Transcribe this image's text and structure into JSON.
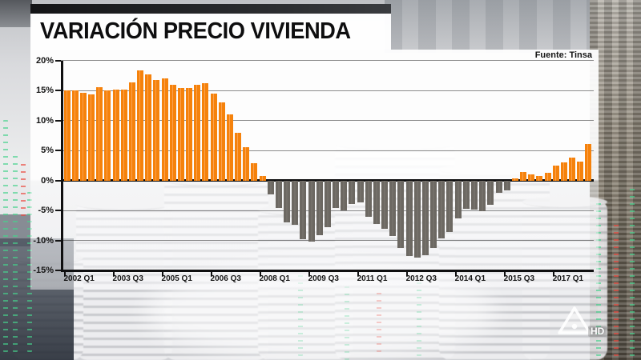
{
  "header": {
    "title": "VARIACIÓN PRECIO VIVIENDA"
  },
  "chart": {
    "source_label": "Fuente: Tinsa"
  },
  "watermark": {
    "hd_label": "HD"
  },
  "chart_data": {
    "type": "bar",
    "title": "VARIACIÓN PRECIO VIVIENDA",
    "source": "Fuente: Tinsa",
    "unit": "%",
    "ylim": [
      -15,
      20
    ],
    "grid": true,
    "y_tick_values": [
      20,
      15,
      10,
      5,
      0,
      -5,
      -10,
      -15
    ],
    "y_tick_labels": [
      "20%",
      "15%",
      "10%",
      "5%",
      "0%",
      "-5%",
      "-10%",
      "-15%"
    ],
    "x_tick_labels": [
      "2002 Q1",
      "2003 Q3",
      "2005 Q1",
      "2006 Q3",
      "2008 Q1",
      "2009 Q3",
      "2011 Q1",
      "2012 Q3",
      "2014 Q1",
      "2015 Q3",
      "2017 Q1"
    ],
    "x_tick_every": 6,
    "quarters": [
      "2002 Q1",
      "2002 Q2",
      "2002 Q3",
      "2002 Q4",
      "2003 Q1",
      "2003 Q2",
      "2003 Q3",
      "2003 Q4",
      "2004 Q1",
      "2004 Q2",
      "2004 Q3",
      "2004 Q4",
      "2005 Q1",
      "2005 Q2",
      "2005 Q3",
      "2005 Q4",
      "2006 Q1",
      "2006 Q2",
      "2006 Q3",
      "2006 Q4",
      "2007 Q1",
      "2007 Q2",
      "2007 Q3",
      "2007 Q4",
      "2008 Q1",
      "2008 Q2",
      "2008 Q3",
      "2008 Q4",
      "2009 Q1",
      "2009 Q2",
      "2009 Q3",
      "2009 Q4",
      "2010 Q1",
      "2010 Q2",
      "2010 Q3",
      "2010 Q4",
      "2011 Q1",
      "2011 Q2",
      "2011 Q3",
      "2011 Q4",
      "2012 Q1",
      "2012 Q2",
      "2012 Q3",
      "2012 Q4",
      "2013 Q1",
      "2013 Q2",
      "2013 Q3",
      "2013 Q4",
      "2014 Q1",
      "2014 Q2",
      "2014 Q3",
      "2014 Q4",
      "2015 Q1",
      "2015 Q2",
      "2015 Q3",
      "2015 Q4",
      "2016 Q1",
      "2016 Q2",
      "2016 Q3",
      "2016 Q4",
      "2017 Q1",
      "2017 Q2",
      "2017 Q3",
      "2017 Q4",
      "2018 Q1"
    ],
    "values": [
      15.0,
      15.0,
      14.6,
      14.3,
      15.5,
      15.0,
      15.1,
      15.2,
      16.4,
      18.4,
      17.7,
      16.8,
      17.0,
      16.0,
      15.4,
      15.4,
      16.0,
      16.2,
      14.5,
      13.0,
      11.0,
      8.0,
      5.6,
      2.9,
      0.8,
      -2.3,
      -4.6,
      -7.0,
      -7.4,
      -9.8,
      -10.2,
      -9.1,
      -7.8,
      -4.6,
      -5.0,
      -3.9,
      -3.7,
      -6.0,
      -7.3,
      -8.0,
      -9.3,
      -11.3,
      -12.6,
      -12.9,
      -12.5,
      -11.3,
      -9.6,
      -8.6,
      -6.3,
      -4.7,
      -4.9,
      -5.1,
      -4.0,
      -2.0,
      -1.6,
      0.3,
      1.4,
      1.0,
      0.7,
      1.3,
      2.5,
      3.0,
      3.8,
      3.2,
      6.1
    ],
    "colors": {
      "positive": "#F5820C",
      "negative": "#6C6862"
    },
    "legend": "none"
  }
}
